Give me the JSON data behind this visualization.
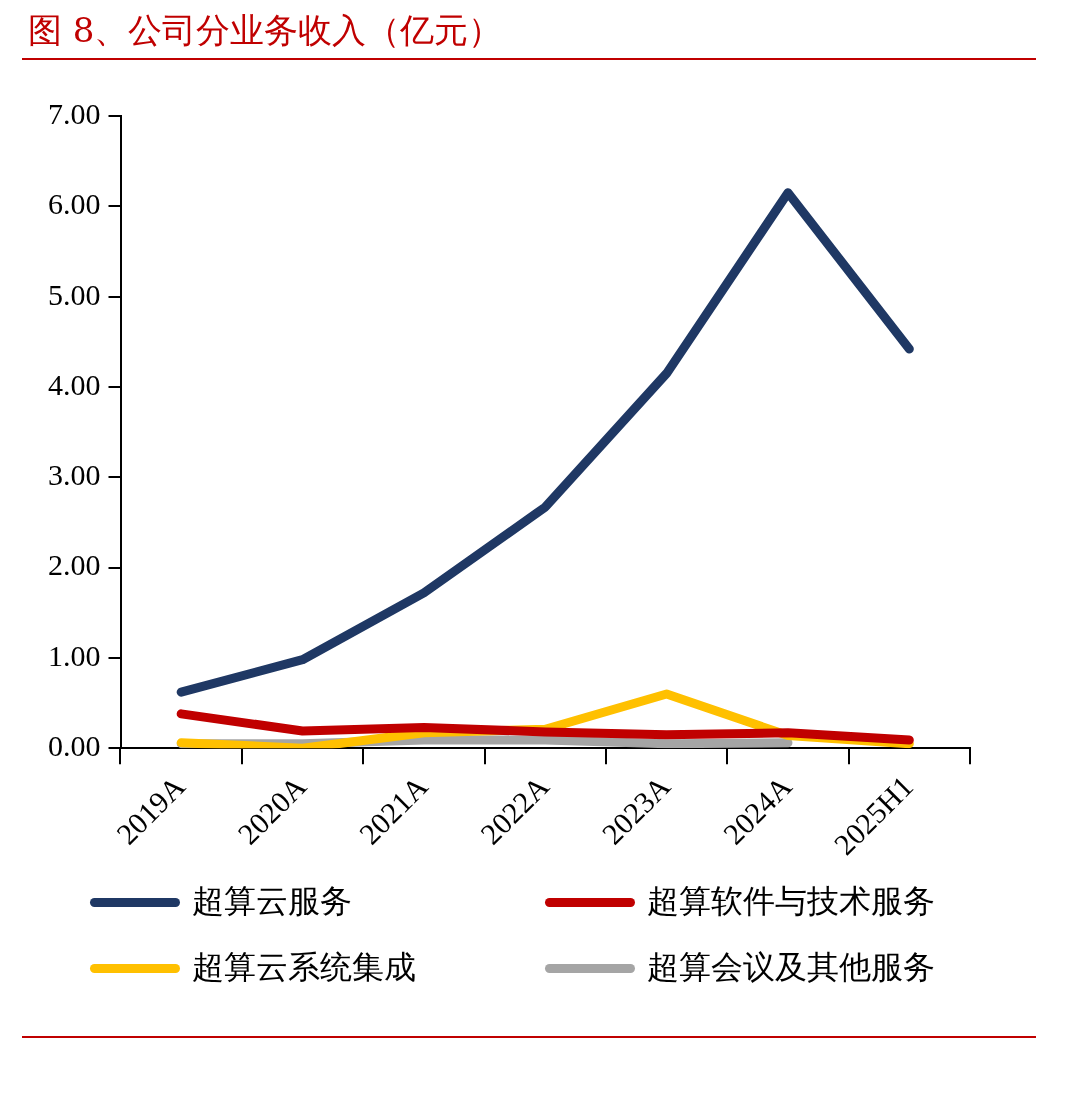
{
  "chart_data": {
    "type": "line",
    "title": "图 8、公司分业务收入（亿元）",
    "categories": [
      "2019A",
      "2020A",
      "2021A",
      "2022A",
      "2023A",
      "2024A",
      "2025H1"
    ],
    "series": [
      {
        "name": "超算云服务",
        "color": "#1f3864",
        "values": [
          0.62,
          0.98,
          1.72,
          2.67,
          4.15,
          6.15,
          4.42
        ]
      },
      {
        "name": "超算软件与技术服务",
        "color": "#c00000",
        "values": [
          0.38,
          0.19,
          0.23,
          0.18,
          0.15,
          0.17,
          0.09
        ]
      },
      {
        "name": "超算云系统集成",
        "color": "#ffc000",
        "values": [
          0.06,
          0.0,
          0.17,
          0.21,
          0.6,
          0.14,
          0.05
        ]
      },
      {
        "name": "超算会议及其他服务",
        "color": "#a5a5a5",
        "values": [
          0.05,
          0.05,
          0.09,
          0.09,
          0.05,
          0.06,
          null
        ]
      }
    ],
    "ylim": [
      0,
      7
    ],
    "yticks": [
      {
        "value": 0,
        "label": "0.00"
      },
      {
        "value": 1,
        "label": "1.00"
      },
      {
        "value": 2,
        "label": "2.00"
      },
      {
        "value": 3,
        "label": "3.00"
      },
      {
        "value": 4,
        "label": "4.00"
      },
      {
        "value": 5,
        "label": "5.00"
      },
      {
        "value": 6,
        "label": "6.00"
      },
      {
        "value": 7,
        "label": "7.00"
      }
    ],
    "grid": false,
    "legend": "bottom",
    "marker": "none",
    "line_style": "solid"
  }
}
